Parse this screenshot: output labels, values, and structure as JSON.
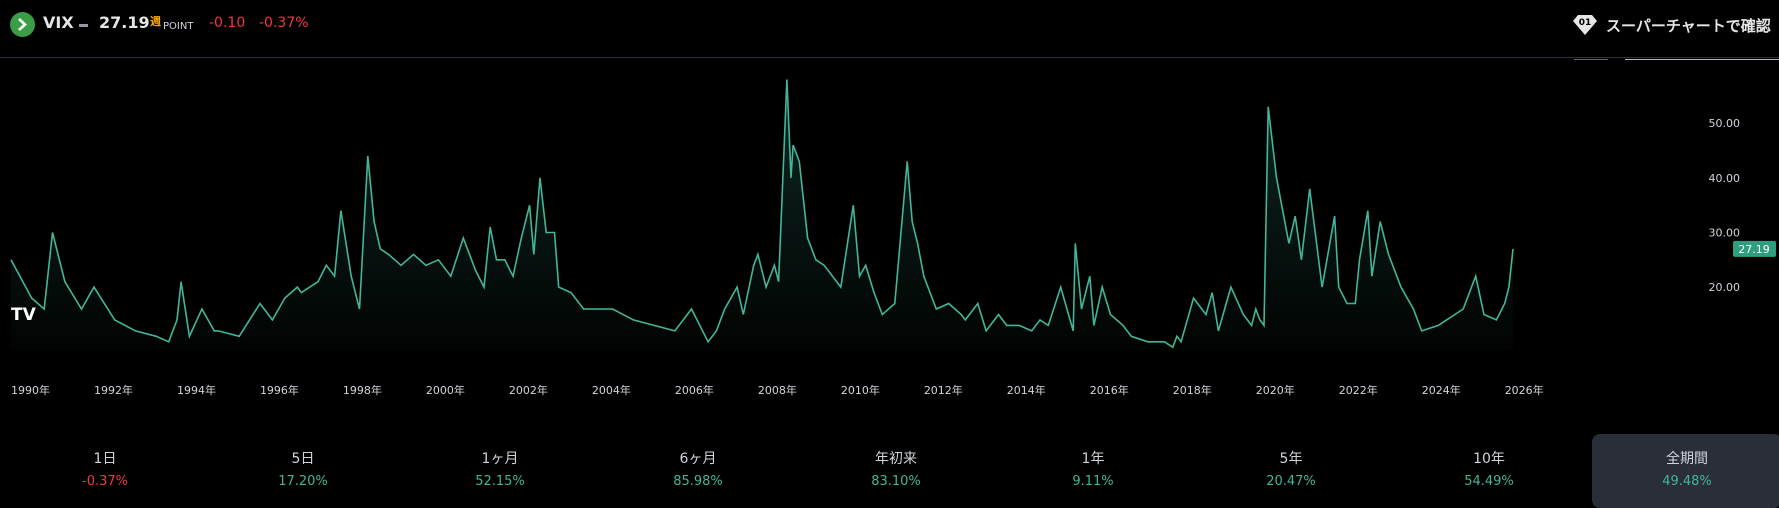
{
  "header": {
    "symbol": "VIX",
    "price": "27.19",
    "interval_mark": "週",
    "unit": "POINT",
    "change": "-0.10",
    "change_pct": "-0.37%",
    "super_chart_label": "スーパーチャートで確認"
  },
  "colors": {
    "line": "#43b59a",
    "negative": "#f23645",
    "positive": "#43b59a",
    "last_price_tag": "#2e9e7f"
  },
  "chart_data": {
    "type": "area",
    "x_ticks": [
      "1990年",
      "1992年",
      "1994年",
      "1996年",
      "1998年",
      "2000年",
      "2002年",
      "2004年",
      "2006年",
      "2008年",
      "2010年",
      "2012年",
      "2014年",
      "2016年",
      "2018年",
      "2020年",
      "2022年",
      "2024年",
      "2026年"
    ],
    "y_ticks": [
      "20.00",
      "30.00",
      "40.00",
      "50.00"
    ],
    "ylim": [
      8.5,
      59
    ],
    "last_value_label": "27.19",
    "watermark": "TV",
    "x": [
      1990.0,
      1990.5,
      1990.8,
      1991.0,
      1991.3,
      1991.7,
      1992.0,
      1992.5,
      1993.0,
      1993.5,
      1993.8,
      1994.0,
      1994.1,
      1994.3,
      1994.6,
      1994.9,
      1995.0,
      1995.5,
      1996.0,
      1996.3,
      1996.6,
      1996.9,
      1997.0,
      1997.4,
      1997.6,
      1997.8,
      1997.95,
      1998.2,
      1998.4,
      1998.6,
      1998.75,
      1998.9,
      1999.1,
      1999.4,
      1999.7,
      2000.0,
      2000.3,
      2000.6,
      2000.9,
      2001.2,
      2001.4,
      2001.55,
      2001.7,
      2001.9,
      2002.1,
      2002.3,
      2002.5,
      2002.6,
      2002.75,
      2002.9,
      2003.1,
      2003.2,
      2003.5,
      2003.8,
      2004.0,
      2004.5,
      2005.0,
      2005.5,
      2006.0,
      2006.4,
      2006.8,
      2007.0,
      2007.2,
      2007.5,
      2007.65,
      2007.9,
      2008.0,
      2008.2,
      2008.4,
      2008.5,
      2008.7,
      2008.8,
      2008.85,
      2009.0,
      2009.2,
      2009.4,
      2009.6,
      2009.8,
      2010.0,
      2010.3,
      2010.45,
      2010.6,
      2010.8,
      2011.0,
      2011.3,
      2011.6,
      2011.72,
      2011.85,
      2012.0,
      2012.3,
      2012.6,
      2012.9,
      2013.0,
      2013.3,
      2013.5,
      2013.8,
      2014.0,
      2014.3,
      2014.6,
      2014.8,
      2015.0,
      2015.3,
      2015.6,
      2015.65,
      2015.8,
      2016.0,
      2016.1,
      2016.3,
      2016.5,
      2016.8,
      2017.0,
      2017.4,
      2017.8,
      2018.0,
      2018.1,
      2018.2,
      2018.5,
      2018.8,
      2018.95,
      2019.1,
      2019.4,
      2019.7,
      2019.9,
      2020.0,
      2020.1,
      2020.2,
      2020.3,
      2020.5,
      2020.8,
      2020.95,
      2021.1,
      2021.3,
      2021.6,
      2021.9,
      2022.0,
      2022.2,
      2022.4,
      2022.5,
      2022.7,
      2022.8,
      2023.0,
      2023.2,
      2023.5,
      2023.8,
      2024.0,
      2024.4,
      2024.6,
      2024.8,
      2025.0,
      2025.2,
      2025.3,
      2025.5,
      2025.8,
      2026.0,
      2026.1,
      2026.2
    ],
    "values": [
      25,
      18,
      16,
      30,
      21,
      16,
      20,
      14,
      12,
      11,
      10,
      14,
      21,
      11,
      16,
      12,
      12,
      11,
      17,
      14,
      18,
      20,
      19,
      21,
      24,
      22,
      34,
      22,
      16,
      44,
      32,
      27,
      26,
      24,
      26,
      24,
      25,
      22,
      29,
      23,
      20,
      31,
      25,
      25,
      22,
      29,
      35,
      26,
      40,
      30,
      30,
      20,
      19,
      16,
      16,
      16,
      14,
      13,
      12,
      16,
      10,
      12,
      16,
      20,
      15,
      24,
      26,
      20,
      24,
      21,
      58,
      40,
      46,
      43,
      29,
      25,
      24,
      22,
      20,
      35,
      22,
      24,
      19,
      15,
      17,
      43,
      32,
      28,
      22,
      16,
      17,
      15,
      14,
      17,
      12,
      15,
      13,
      13,
      12,
      14,
      13,
      20,
      12,
      28,
      16,
      22,
      13,
      20,
      15,
      13,
      11,
      10,
      10,
      9,
      11,
      10,
      18,
      15,
      19,
      12,
      20,
      15,
      13,
      16,
      14,
      13,
      53,
      40,
      28,
      33,
      25,
      38,
      20,
      33,
      20,
      17,
      17,
      25,
      34,
      22,
      32,
      26,
      20,
      16,
      12,
      13,
      14,
      15,
      16,
      20,
      22,
      15,
      14,
      17,
      20,
      27
    ]
  },
  "periods": [
    {
      "label": "1日",
      "value": "-0.37%",
      "tone": "neg"
    },
    {
      "label": "5日",
      "value": "17.20%",
      "tone": "pos"
    },
    {
      "label": "1ヶ月",
      "value": "52.15%",
      "tone": "pos"
    },
    {
      "label": "6ヶ月",
      "value": "85.98%",
      "tone": "pos"
    },
    {
      "label": "年初来",
      "value": "83.10%",
      "tone": "pos"
    },
    {
      "label": "1年",
      "value": "9.11%",
      "tone": "pos"
    },
    {
      "label": "5年",
      "value": "20.47%",
      "tone": "pos"
    },
    {
      "label": "10年",
      "value": "54.49%",
      "tone": "pos"
    },
    {
      "label": "全期間",
      "value": "49.48%",
      "tone": "pos",
      "active": true
    }
  ]
}
